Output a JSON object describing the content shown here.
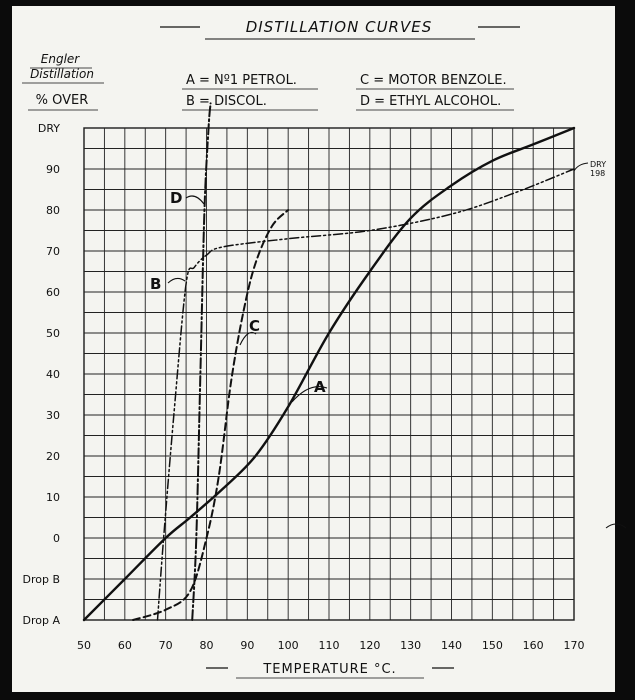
{
  "title": "DISTILLATION CURVES",
  "side_heading": {
    "line1": "Engler",
    "line2": "Distillation",
    "line3": "% OVER"
  },
  "legend": {
    "A": "A = Nº1 PETROL.",
    "B": "B = DISCOL.",
    "C": "C = MOTOR BENZOLE.",
    "D": "D = ETHYL ALCOHOL."
  },
  "chart_data": {
    "type": "line",
    "title": "DISTILLATION CURVES",
    "xlabel": "TEMPERATURE °C.",
    "ylabel": "% OVER",
    "xlim": [
      50,
      170
    ],
    "ylim": [
      "Drop A",
      "DRY"
    ],
    "x_ticks": [
      "50",
      "60",
      "70",
      "80",
      "90",
      "100",
      "110",
      "120",
      "130",
      "140",
      "150",
      "160",
      "170"
    ],
    "y_ticks": [
      "Drop A",
      "Drop B",
      "0",
      "10",
      "20",
      "30",
      "40",
      "50",
      "60",
      "70",
      "80",
      "90",
      "DRY"
    ],
    "grid": true,
    "annotations": {
      "dry_note_1": "DRY",
      "dry_note_2": "198"
    },
    "series": [
      {
        "name": "A",
        "label": "A",
        "style": "solid",
        "points": [
          {
            "x": 50,
            "y": "Drop A"
          },
          {
            "x": 60,
            "y": "Drop B"
          },
          {
            "x": 70,
            "y": 0
          },
          {
            "x": 76,
            "y": 5
          },
          {
            "x": 84,
            "y": 12
          },
          {
            "x": 92,
            "y": 20
          },
          {
            "x": 100,
            "y": 32
          },
          {
            "x": 110,
            "y": 50
          },
          {
            "x": 120,
            "y": 65
          },
          {
            "x": 130,
            "y": 78
          },
          {
            "x": 140,
            "y": 86
          },
          {
            "x": 150,
            "y": 92
          },
          {
            "x": 160,
            "y": 96
          },
          {
            "x": 170,
            "y": "DRY"
          }
        ]
      },
      {
        "name": "B",
        "label": "B",
        "style": "dash-dot-dot",
        "points": [
          {
            "x": 68,
            "y": "Drop A"
          },
          {
            "x": 69.5,
            "y": 0
          },
          {
            "x": 72,
            "y": 30
          },
          {
            "x": 75,
            "y": 62
          },
          {
            "x": 77,
            "y": 66
          },
          {
            "x": 80,
            "y": 69
          },
          {
            "x": 84,
            "y": 71
          },
          {
            "x": 100,
            "y": 73
          },
          {
            "x": 120,
            "y": 75
          },
          {
            "x": 140,
            "y": 79
          },
          {
            "x": 155,
            "y": 84
          },
          {
            "x": 170,
            "y": 90
          }
        ]
      },
      {
        "name": "C",
        "label": "C",
        "style": "dashed",
        "points": [
          {
            "x": 62,
            "y": "Drop A"
          },
          {
            "x": 70,
            "y": "Drop A+"
          },
          {
            "x": 76,
            "y": "Drop B-"
          },
          {
            "x": 80,
            "y": 0
          },
          {
            "x": 83,
            "y": 15
          },
          {
            "x": 86,
            "y": 38
          },
          {
            "x": 89,
            "y": 55
          },
          {
            "x": 92,
            "y": 67
          },
          {
            "x": 96,
            "y": 76
          },
          {
            "x": 100,
            "y": 80
          }
        ]
      },
      {
        "name": "D",
        "label": "D",
        "style": "dash-dot",
        "points": [
          {
            "x": 76.5,
            "y": "Drop A"
          },
          {
            "x": 77.5,
            "y": 0
          },
          {
            "x": 78.5,
            "y": 40
          },
          {
            "x": 79.5,
            "y": 80
          },
          {
            "x": 80.5,
            "y": "DRY"
          },
          {
            "x": 81,
            "y": "DRY+"
          }
        ]
      }
    ]
  }
}
